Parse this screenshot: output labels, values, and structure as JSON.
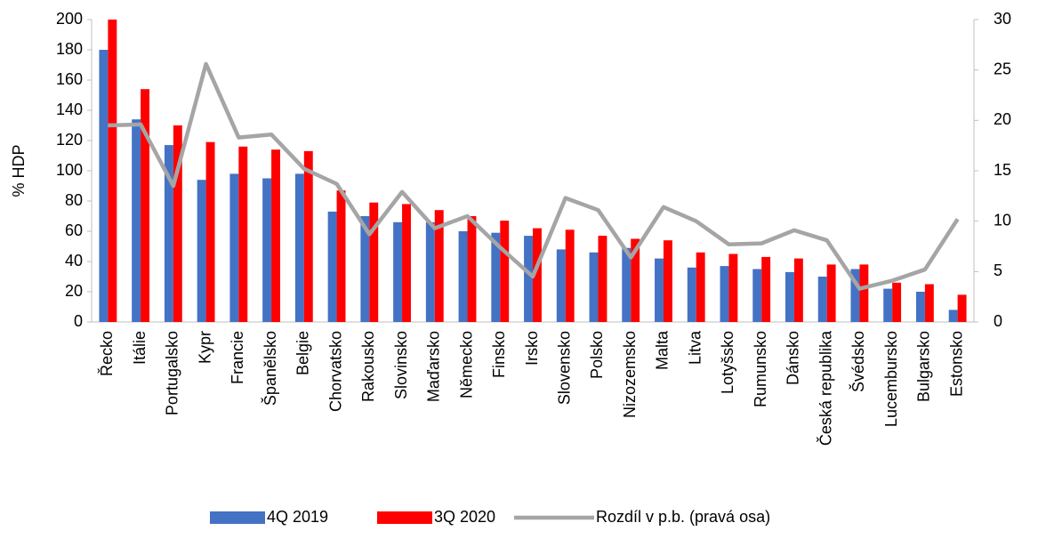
{
  "chart_data": {
    "type": "bar",
    "ylabel": "% HDP",
    "categories": [
      "Řecko",
      "Itálie",
      "Portugalsko",
      "Kypr",
      "Francie",
      "Španělsko",
      "Belgie",
      "Chorvatsko",
      "Rakousko",
      "Slovinsko",
      "Maďarsko",
      "Německo",
      "Finsko",
      "Irsko",
      "Slovensko",
      "Polsko",
      "Nizozemsko",
      "Malta",
      "Litva",
      "Lotyšsko",
      "Rumunsko",
      "Dánsko",
      "Česká republika",
      "Švédsko",
      "Lucembursko",
      "Bulgarsko",
      "Estonsko"
    ],
    "series": [
      {
        "name": "4Q 2019",
        "color": "#4472c4",
        "values": [
          180,
          134,
          117,
          94,
          98,
          95,
          98,
          73,
          70,
          66,
          66,
          60,
          59,
          57,
          48,
          46,
          49,
          42,
          36,
          37,
          35,
          33,
          30,
          35,
          22,
          20,
          8
        ]
      },
      {
        "name": "3Q 2020",
        "color": "#ff0000",
        "values": [
          200,
          154,
          130,
          119,
          116,
          114,
          113,
          87,
          79,
          78,
          74,
          70,
          67,
          62,
          61,
          57,
          55,
          54,
          46,
          45,
          43,
          42,
          38,
          38,
          26,
          25,
          18
        ]
      },
      {
        "name": "Rozdíl v p.b. (pravá osa)",
        "color": "#a5a5a5",
        "type": "line",
        "axis": "y2",
        "values": [
          19.5,
          19.6,
          13.5,
          25.6,
          18.3,
          18.6,
          15.2,
          13.7,
          8.7,
          12.9,
          9.3,
          10.5,
          7.4,
          4.5,
          12.3,
          11.1,
          6.4,
          11.4,
          10.0,
          7.7,
          7.8,
          9.1,
          8.1,
          3.3,
          4.1,
          5.2,
          10.2
        ]
      }
    ],
    "ylim": [
      0,
      200
    ],
    "yticks": [
      0,
      20,
      40,
      60,
      80,
      100,
      120,
      140,
      160,
      180,
      200
    ],
    "y2lim": [
      0,
      30
    ],
    "y2ticks": [
      0,
      5,
      10,
      15,
      20,
      25,
      30
    ],
    "grid": false,
    "legend": "bottom"
  }
}
